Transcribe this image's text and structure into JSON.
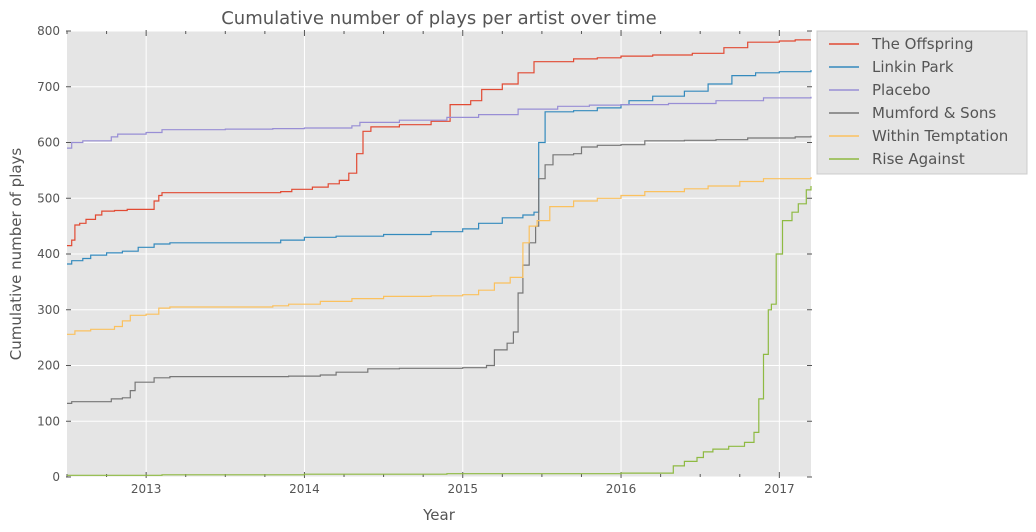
{
  "chart_data": {
    "type": "line",
    "title": "Cumulative number of plays per artist over time",
    "xlabel": "Year",
    "ylabel": "Cumulative number of plays",
    "xlim": [
      2012.5,
      2017.2
    ],
    "ylim": [
      0,
      800
    ],
    "xticks": [
      2013,
      2014,
      2015,
      2016,
      2017
    ],
    "xtick_labels": [
      "2013",
      "2014",
      "2015",
      "2016",
      "2017"
    ],
    "yticks": [
      0,
      100,
      200,
      300,
      400,
      500,
      600,
      700,
      800
    ],
    "ytick_labels": [
      "0",
      "100",
      "200",
      "300",
      "400",
      "500",
      "600",
      "700",
      "800"
    ],
    "grid": true,
    "legend_position": "outside-top-right",
    "background_color": "#e5e5e5",
    "series": [
      {
        "name": "The Offspring",
        "color": "#e24a33",
        "points": [
          [
            2012.5,
            415
          ],
          [
            2012.53,
            425
          ],
          [
            2012.55,
            452
          ],
          [
            2012.58,
            455
          ],
          [
            2012.62,
            462
          ],
          [
            2012.68,
            470
          ],
          [
            2012.72,
            477
          ],
          [
            2012.8,
            478
          ],
          [
            2012.88,
            480
          ],
          [
            2013.05,
            495
          ],
          [
            2013.08,
            505
          ],
          [
            2013.1,
            510
          ],
          [
            2013.5,
            510
          ],
          [
            2013.85,
            512
          ],
          [
            2013.92,
            516
          ],
          [
            2014.05,
            520
          ],
          [
            2014.15,
            526
          ],
          [
            2014.22,
            532
          ],
          [
            2014.28,
            545
          ],
          [
            2014.33,
            580
          ],
          [
            2014.37,
            620
          ],
          [
            2014.42,
            628
          ],
          [
            2014.6,
            632
          ],
          [
            2014.8,
            638
          ],
          [
            2014.92,
            668
          ],
          [
            2015.05,
            675
          ],
          [
            2015.12,
            695
          ],
          [
            2015.25,
            705
          ],
          [
            2015.35,
            725
          ],
          [
            2015.45,
            745
          ],
          [
            2015.7,
            750
          ],
          [
            2015.85,
            752
          ],
          [
            2016.0,
            755
          ],
          [
            2016.2,
            757
          ],
          [
            2016.45,
            760
          ],
          [
            2016.65,
            770
          ],
          [
            2016.8,
            780
          ],
          [
            2017.0,
            782
          ],
          [
            2017.1,
            784
          ],
          [
            2017.2,
            784
          ]
        ]
      },
      {
        "name": "Linkin Park",
        "color": "#348abd",
        "points": [
          [
            2012.5,
            382
          ],
          [
            2012.53,
            388
          ],
          [
            2012.6,
            392
          ],
          [
            2012.65,
            398
          ],
          [
            2012.75,
            402
          ],
          [
            2012.85,
            405
          ],
          [
            2012.95,
            412
          ],
          [
            2013.05,
            418
          ],
          [
            2013.15,
            420
          ],
          [
            2013.5,
            420
          ],
          [
            2013.75,
            420
          ],
          [
            2013.85,
            425
          ],
          [
            2014.0,
            430
          ],
          [
            2014.2,
            432
          ],
          [
            2014.5,
            435
          ],
          [
            2014.8,
            440
          ],
          [
            2015.0,
            445
          ],
          [
            2015.1,
            455
          ],
          [
            2015.25,
            465
          ],
          [
            2015.38,
            470
          ],
          [
            2015.45,
            475
          ],
          [
            2015.48,
            600
          ],
          [
            2015.52,
            655
          ],
          [
            2015.7,
            657
          ],
          [
            2015.85,
            662
          ],
          [
            2016.0,
            668
          ],
          [
            2016.05,
            675
          ],
          [
            2016.2,
            683
          ],
          [
            2016.4,
            692
          ],
          [
            2016.55,
            705
          ],
          [
            2016.7,
            720
          ],
          [
            2016.85,
            725
          ],
          [
            2017.0,
            727
          ],
          [
            2017.2,
            730
          ]
        ]
      },
      {
        "name": "Placebo",
        "color": "#988ed5",
        "points": [
          [
            2012.5,
            590
          ],
          [
            2012.53,
            600
          ],
          [
            2012.6,
            603
          ],
          [
            2012.75,
            603
          ],
          [
            2012.78,
            610
          ],
          [
            2012.82,
            615
          ],
          [
            2013.0,
            618
          ],
          [
            2013.1,
            623
          ],
          [
            2013.5,
            624
          ],
          [
            2013.8,
            625
          ],
          [
            2014.0,
            626
          ],
          [
            2014.3,
            630
          ],
          [
            2014.35,
            636
          ],
          [
            2014.6,
            640
          ],
          [
            2014.9,
            645
          ],
          [
            2015.1,
            650
          ],
          [
            2015.35,
            660
          ],
          [
            2015.6,
            665
          ],
          [
            2015.8,
            667
          ],
          [
            2016.0,
            668
          ],
          [
            2016.3,
            670
          ],
          [
            2016.6,
            675
          ],
          [
            2016.9,
            680
          ],
          [
            2017.2,
            682
          ]
        ]
      },
      {
        "name": "Mumford & Sons",
        "color": "#777777",
        "points": [
          [
            2012.5,
            132
          ],
          [
            2012.53,
            135
          ],
          [
            2012.75,
            135
          ],
          [
            2012.78,
            140
          ],
          [
            2012.85,
            142
          ],
          [
            2012.9,
            155
          ],
          [
            2012.93,
            170
          ],
          [
            2013.05,
            178
          ],
          [
            2013.15,
            180
          ],
          [
            2013.9,
            181
          ],
          [
            2014.1,
            183
          ],
          [
            2014.2,
            188
          ],
          [
            2014.4,
            194
          ],
          [
            2014.6,
            195
          ],
          [
            2015.0,
            196
          ],
          [
            2015.15,
            200
          ],
          [
            2015.2,
            228
          ],
          [
            2015.28,
            240
          ],
          [
            2015.32,
            260
          ],
          [
            2015.35,
            330
          ],
          [
            2015.38,
            380
          ],
          [
            2015.42,
            420
          ],
          [
            2015.46,
            450
          ],
          [
            2015.48,
            535
          ],
          [
            2015.52,
            560
          ],
          [
            2015.57,
            578
          ],
          [
            2015.7,
            580
          ],
          [
            2015.75,
            592
          ],
          [
            2015.85,
            595
          ],
          [
            2016.0,
            596
          ],
          [
            2016.15,
            603
          ],
          [
            2016.4,
            604
          ],
          [
            2016.6,
            605
          ],
          [
            2016.8,
            608
          ],
          [
            2017.1,
            610
          ],
          [
            2017.2,
            612
          ]
        ]
      },
      {
        "name": "Within Temptation",
        "color": "#fbc15e",
        "points": [
          [
            2012.5,
            256
          ],
          [
            2012.55,
            262
          ],
          [
            2012.65,
            265
          ],
          [
            2012.8,
            270
          ],
          [
            2012.85,
            280
          ],
          [
            2012.9,
            290
          ],
          [
            2013.0,
            292
          ],
          [
            2013.08,
            303
          ],
          [
            2013.15,
            305
          ],
          [
            2013.5,
            305
          ],
          [
            2013.8,
            307
          ],
          [
            2013.9,
            310
          ],
          [
            2014.1,
            315
          ],
          [
            2014.3,
            320
          ],
          [
            2014.5,
            324
          ],
          [
            2014.8,
            325
          ],
          [
            2015.0,
            327
          ],
          [
            2015.1,
            335
          ],
          [
            2015.2,
            348
          ],
          [
            2015.3,
            358
          ],
          [
            2015.38,
            420
          ],
          [
            2015.42,
            450
          ],
          [
            2015.47,
            460
          ],
          [
            2015.55,
            485
          ],
          [
            2015.7,
            495
          ],
          [
            2015.85,
            500
          ],
          [
            2016.0,
            505
          ],
          [
            2016.15,
            512
          ],
          [
            2016.4,
            517
          ],
          [
            2016.55,
            522
          ],
          [
            2016.75,
            530
          ],
          [
            2016.9,
            535
          ],
          [
            2017.2,
            538
          ]
        ]
      },
      {
        "name": "Rise Against",
        "color": "#8eba42",
        "points": [
          [
            2012.5,
            3
          ],
          [
            2013.0,
            3
          ],
          [
            2013.1,
            4
          ],
          [
            2014.0,
            5
          ],
          [
            2014.9,
            6
          ],
          [
            2016.0,
            7
          ],
          [
            2016.3,
            7
          ],
          [
            2016.33,
            20
          ],
          [
            2016.4,
            28
          ],
          [
            2016.48,
            35
          ],
          [
            2016.52,
            45
          ],
          [
            2016.58,
            50
          ],
          [
            2016.68,
            55
          ],
          [
            2016.78,
            62
          ],
          [
            2016.84,
            80
          ],
          [
            2016.87,
            140
          ],
          [
            2016.9,
            220
          ],
          [
            2016.93,
            300
          ],
          [
            2016.95,
            310
          ],
          [
            2016.98,
            400
          ],
          [
            2017.02,
            460
          ],
          [
            2017.08,
            475
          ],
          [
            2017.12,
            490
          ],
          [
            2017.17,
            515
          ],
          [
            2017.2,
            522
          ]
        ]
      }
    ]
  }
}
